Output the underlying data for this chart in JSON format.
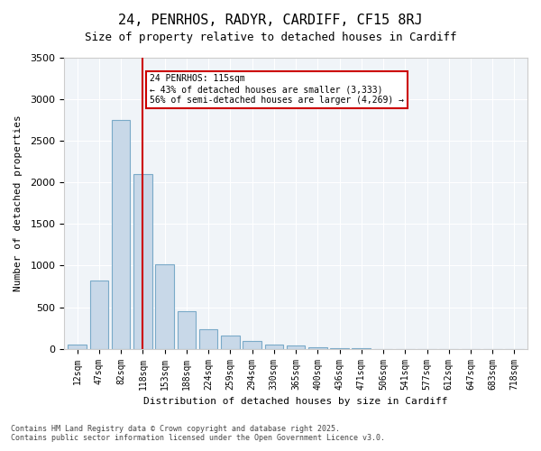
{
  "title1": "24, PENRHOS, RADYR, CARDIFF, CF15 8RJ",
  "title2": "Size of property relative to detached houses in Cardiff",
  "xlabel": "Distribution of detached houses by size in Cardiff",
  "ylabel": "Number of detached properties",
  "categories": [
    "12sqm",
    "47sqm",
    "82sqm",
    "118sqm",
    "153sqm",
    "188sqm",
    "224sqm",
    "259sqm",
    "294sqm",
    "330sqm",
    "365sqm",
    "400sqm",
    "436sqm",
    "471sqm",
    "506sqm",
    "541sqm",
    "577sqm",
    "612sqm",
    "647sqm",
    "683sqm",
    "718sqm"
  ],
  "values": [
    55,
    820,
    2750,
    2100,
    1020,
    450,
    230,
    155,
    90,
    55,
    35,
    20,
    10,
    5,
    2,
    1,
    1,
    0,
    0,
    0,
    0
  ],
  "bar_color": "#c8d8e8",
  "bar_edge_color": "#7aaac8",
  "vline_x": 3,
  "vline_color": "#cc0000",
  "annotation_title": "24 PENRHOS: 115sqm",
  "annotation_line1": "← 43% of detached houses are smaller (3,333)",
  "annotation_line2": "56% of semi-detached houses are larger (4,269) →",
  "annotation_box_color": "#cc0000",
  "ylim": [
    0,
    3500
  ],
  "yticks": [
    0,
    500,
    1000,
    1500,
    2000,
    2500,
    3000,
    3500
  ],
  "footer1": "Contains HM Land Registry data © Crown copyright and database right 2025.",
  "footer2": "Contains public sector information licensed under the Open Government Licence v3.0.",
  "bg_color": "#f0f4f8"
}
